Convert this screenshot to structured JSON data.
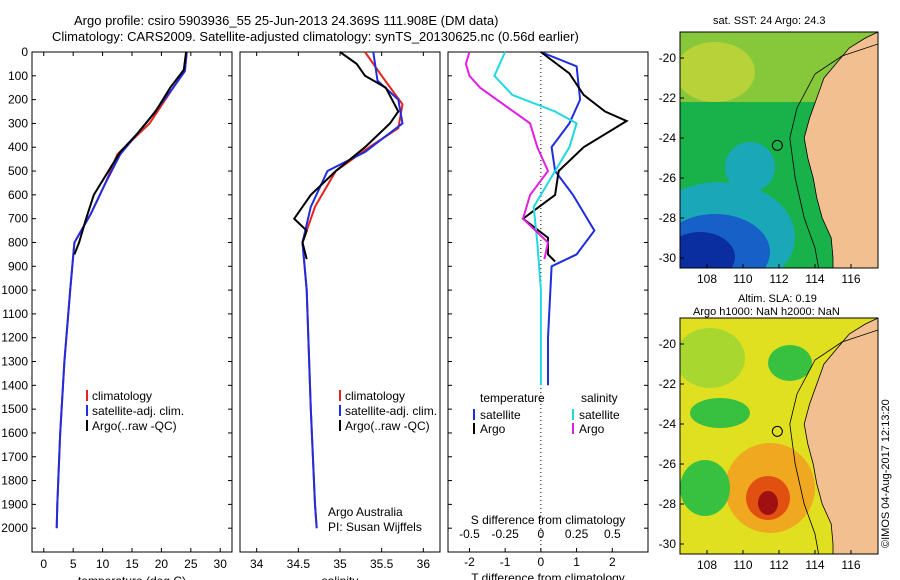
{
  "title_line1": "Argo profile: csiro 5903936_55 25-Jun-2013 24.369S 111.908E (DM data)",
  "title_line2": "Climatology: CARS2009. Satellite-adjusted climatology: synTS_20130625.nc (0.56d earlier)",
  "map_sst_title": "sat. SST: 24 Argo: 24.3",
  "map_sla_title1": "Altim. SLA: 0.19",
  "map_sla_title2": "Argo h1000: NaN h2000: NaN",
  "stamp": "©IMOS 04-Aug-2017 12:13:20",
  "colors": {
    "climatology": "#e8221c",
    "satellite": "#1f2de0",
    "argo": "#000000",
    "sal_satellite": "#20d8e0",
    "sal_argo": "#e020e0"
  },
  "chart_data": [
    {
      "id": "temperature",
      "type": "line",
      "xlabel": "temperature (deg C)",
      "ylabel": "",
      "xlim": [
        -2,
        32
      ],
      "ylim": [
        0,
        2100
      ],
      "y_reversed": true,
      "xticks": [
        0,
        5,
        10,
        15,
        20,
        25,
        30
      ],
      "yticks": [
        0,
        100,
        200,
        300,
        400,
        500,
        600,
        700,
        800,
        900,
        1000,
        1100,
        1200,
        1300,
        1400,
        1500,
        1600,
        1700,
        1800,
        1900,
        2000
      ],
      "legend": [
        "climatology",
        "satellite-adj. clim.",
        "Argo(..raw -QC)"
      ],
      "legend_position": "bottom-middle",
      "series": [
        {
          "name": "climatology",
          "color": "climatology",
          "x": [
            24.3,
            24,
            22,
            18,
            12.5,
            10.5,
            8,
            5.2,
            4.5,
            3.5,
            2.8,
            2.3,
            2.2
          ],
          "y": [
            0,
            80,
            150,
            300,
            430,
            550,
            680,
            800,
            1000,
            1300,
            1600,
            1900,
            2000
          ]
        },
        {
          "name": "satellite-adj. clim.",
          "color": "satellite",
          "x": [
            24.3,
            24,
            22,
            18,
            13,
            10.5,
            8,
            5.2,
            4.5,
            3.5,
            2.8,
            2.3,
            2.2
          ],
          "y": [
            0,
            80,
            150,
            280,
            430,
            550,
            680,
            800,
            1000,
            1300,
            1600,
            1900,
            2000
          ]
        },
        {
          "name": "Argo(..raw -QC)",
          "color": "argo",
          "x": [
            24.2,
            23.8,
            21.5,
            19,
            16,
            13,
            10.5,
            8.5,
            7.2,
            6,
            5.2
          ],
          "y": [
            0,
            75,
            150,
            250,
            340,
            420,
            520,
            600,
            700,
            800,
            850
          ]
        }
      ]
    },
    {
      "id": "salinity",
      "type": "line",
      "xlabel": "salinity",
      "ylabel": "",
      "xlim": [
        33.8,
        36.2
      ],
      "ylim": [
        0,
        2100
      ],
      "y_reversed": true,
      "xticks": [
        34,
        34.5,
        35,
        35.5,
        36
      ],
      "legend": [
        "climatology",
        "satellite-adj. clim.",
        "Argo(..raw -QC)"
      ],
      "legend_position": "bottom-middle",
      "annotation": [
        "Argo Australia",
        "PI: Susan Wijffels"
      ],
      "series": [
        {
          "name": "climatology",
          "color": "climatology",
          "x": [
            35.3,
            35.5,
            35.75,
            35.7,
            35.35,
            34.95,
            34.7,
            34.55,
            34.6,
            34.65,
            34.7,
            34.72
          ],
          "y": [
            0,
            100,
            220,
            320,
            400,
            500,
            650,
            800,
            1000,
            1500,
            1900,
            2000
          ]
        },
        {
          "name": "satellite-adj. clim.",
          "color": "satellite",
          "x": [
            35.4,
            35.45,
            35.7,
            35.75,
            35.3,
            34.85,
            34.65,
            34.55,
            34.6,
            34.65,
            34.7,
            34.72
          ],
          "y": [
            0,
            120,
            200,
            300,
            420,
            500,
            650,
            800,
            1000,
            1500,
            1900,
            2000
          ]
        },
        {
          "name": "Argo(..raw -QC)",
          "color": "argo",
          "x": [
            35.0,
            35.2,
            35.3,
            35.55,
            35.7,
            35.6,
            35.3,
            34.95,
            34.65,
            34.45,
            34.6,
            34.55,
            34.6
          ],
          "y": [
            0,
            50,
            100,
            150,
            250,
            300,
            400,
            500,
            600,
            700,
            750,
            800,
            870
          ]
        }
      ]
    },
    {
      "id": "difference",
      "type": "line",
      "xlabel": "T difference from climatology",
      "xlabel_top": "S difference from climatology",
      "xlim": [
        -2.6,
        3.0
      ],
      "ylim": [
        0,
        2100
      ],
      "y_reversed": true,
      "xticks": [
        -2,
        -1,
        0,
        1,
        2
      ],
      "xticks_top_labels": [
        "-0.5",
        "-0.25",
        "0",
        "0.25",
        "0.5"
      ],
      "legend": [
        "temperature",
        "satellite",
        "Argo",
        "salinity",
        "satellite",
        "Argo"
      ],
      "legend_position": "bottom",
      "series": [
        {
          "name": "T satellite",
          "color": "satellite",
          "x": [
            0,
            1.0,
            1.1,
            0.8,
            0.3,
            0.4,
            0.9,
            1.5,
            1.0,
            0.3,
            0.2,
            0.2
          ],
          "y": [
            0,
            60,
            200,
            300,
            400,
            500,
            600,
            750,
            850,
            900,
            1200,
            1400
          ]
        },
        {
          "name": "T Argo",
          "color": "argo",
          "x": [
            0,
            0.8,
            1.2,
            1.8,
            2.4,
            1.2,
            0.5,
            0.4,
            -0.5,
            0.2,
            0.2,
            0.4
          ],
          "y": [
            0,
            90,
            180,
            250,
            290,
            400,
            500,
            600,
            700,
            780,
            850,
            880
          ]
        },
        {
          "name": "S satellite",
          "color": "sal_satellite",
          "x": [
            -1.0,
            -1.3,
            -0.8,
            0.4,
            1.0,
            0.8,
            0.4,
            -0.2,
            -0.1,
            0,
            0
          ],
          "y": [
            0,
            100,
            180,
            250,
            300,
            400,
            500,
            650,
            800,
            1000,
            1400
          ]
        },
        {
          "name": "S Argo",
          "color": "sal_argo",
          "x": [
            -2.0,
            -2.1,
            -2.0,
            -1.7,
            -0.3,
            -0.1,
            0.2,
            -0.3,
            -0.5,
            0.2,
            0.1
          ],
          "y": [
            0,
            50,
            100,
            150,
            300,
            400,
            500,
            600,
            700,
            800,
            870
          ]
        }
      ]
    },
    {
      "id": "sst_map",
      "type": "heatmap",
      "title": "sat. SST: 24 Argo: 24.3",
      "xticks": [
        108,
        110,
        112,
        114,
        116
      ],
      "yticks": [
        -20,
        -22,
        -24,
        -26,
        -28,
        -30
      ],
      "xlim": [
        106.5,
        117.5
      ],
      "ylim": [
        -30.5,
        -18.7
      ],
      "argo_position": [
        111.908,
        -24.369
      ]
    },
    {
      "id": "sla_map",
      "type": "heatmap",
      "title": "Altim. SLA: 0.19",
      "xticks": [
        108,
        110,
        112,
        114,
        116
      ],
      "yticks": [
        -20,
        -22,
        -24,
        -26,
        -28,
        -30
      ],
      "xlim": [
        106.5,
        117.5
      ],
      "ylim": [
        -30.5,
        -18.7
      ],
      "argo_position": [
        111.908,
        -24.369
      ]
    }
  ]
}
